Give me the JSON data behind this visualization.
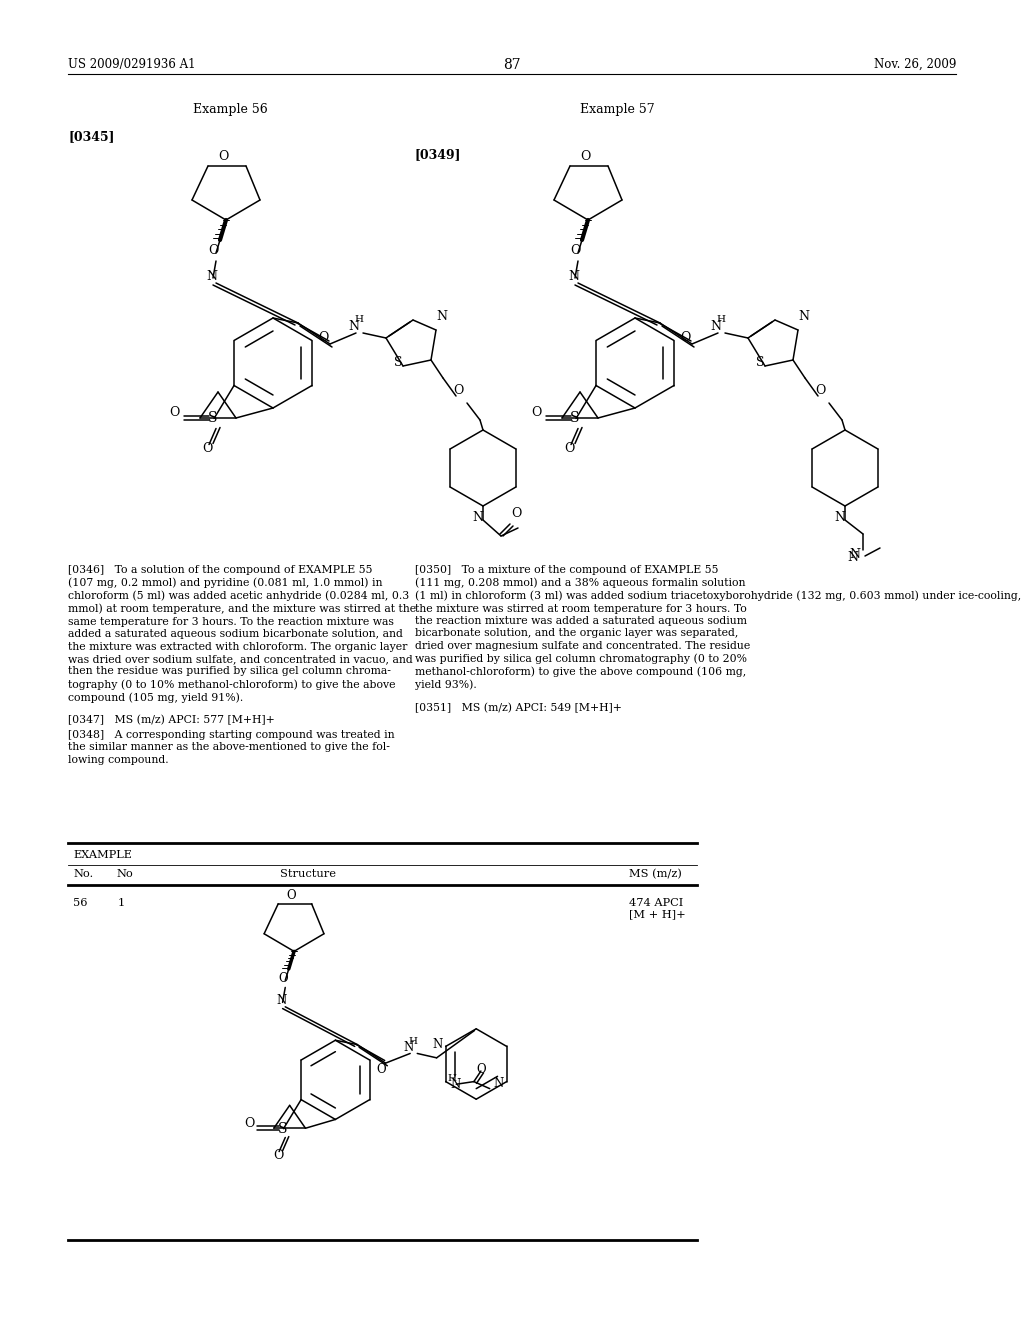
{
  "page_number": "87",
  "patent_number": "US 2009/0291936 A1",
  "patent_date": "Nov. 26, 2009",
  "example56_label": "Example 56",
  "example57_label": "Example 57",
  "para345": "[0345]",
  "para349": "[0349]",
  "para346_text": "[0346]   To a solution of the compound of EXAMPLE 55\n(107 mg, 0.2 mmol) and pyridine (0.081 ml, 1.0 mmol) in\nchloroform (5 ml) was added acetic anhydride (0.0284 ml, 0.3\nmmol) at room temperature, and the mixture was stirred at the\nsame temperature for 3 hours. To the reaction mixture was\nadded a saturated aqueous sodium bicarbonate solution, and\nthe mixture was extracted with chloroform. The organic layer\nwas dried over sodium sulfate, and concentrated in vacuo, and\nthen the residue was purified by silica gel column chroma-\ntography (0 to 10% methanol-chloroform) to give the above\ncompound (105 mg, yield 91%).",
  "para347_text": "[0347]   MS (m/z) APCI: 577 [M+H]+",
  "para348_text": "[0348]   A corresponding starting compound was treated in\nthe similar manner as the above-mentioned to give the fol-\nlowing compound.",
  "para350_text": "[0350]   To a mixture of the compound of EXAMPLE 55\n(111 mg, 0.208 mmol) and a 38% aqueous formalin solution\n(1 ml) in chloroform (3 ml) was added sodium triacetoxyborohydride (132 mg, 0.603 mmol) under ice-cooling, and\nthe mixture was stirred at room temperature for 3 hours. To\nthe reaction mixture was added a saturated aqueous sodium\nbicarbonate solution, and the organic layer was separated,\ndried over magnesium sulfate and concentrated. The residue\nwas purified by silica gel column chromatography (0 to 20%\nmethanol-chloroform) to give the above compound (106 mg,\nyield 93%).",
  "para351_text": "[0351]   MS (m/z) APCI: 549 [M+H]+",
  "table_example": "EXAMPLE",
  "table_no": "No.",
  "table_no2": "No",
  "table_structure": "Structure",
  "table_ms": "MS (m/z)",
  "row_no": "56",
  "row_no2": "1",
  "row_ms": "474 APCI\n[M + H]+"
}
